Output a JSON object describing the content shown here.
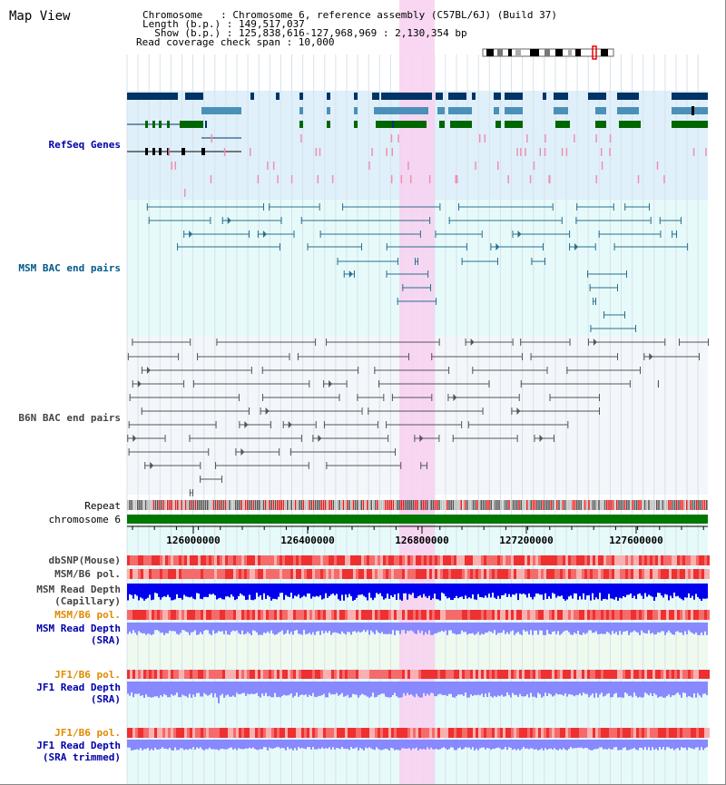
{
  "title": "Map View",
  "info": [
    "Chromosome   : Chromosome 6, reference assembly (C57BL/6J) (Build 37)",
    "Length (b.p.) : 149,517,037",
    "  Show (b.p.) : 125,838,616-127,968,969 : 2,130,354 bp",
    "Read coverage check span : 10,000"
  ],
  "tracks": {
    "refseq": {
      "label": "RefSeq Genes",
      "color": "#0000aa"
    },
    "msm_bac": {
      "label": "MSM BAC end pairs",
      "color": "#005a8c"
    },
    "b6n_bac": {
      "label": "B6N BAC end pairs",
      "color": "#444444"
    },
    "repeat": {
      "label": "Repeat",
      "color": "#000000"
    },
    "chromosome": {
      "label": "chromosome 6",
      "color": "#000000"
    },
    "dbsnp": {
      "label": "dbSNP(Mouse)",
      "color": "#444444"
    },
    "msm_pol1": {
      "label": "MSM/B6 pol.",
      "color": "#444444"
    },
    "msm_depth_cap": {
      "label1": "MSM Read Depth",
      "label2": "(Capillary)",
      "color": "#444444"
    },
    "msm_pol2": {
      "label": "MSM/B6 pol.",
      "color": "#e08a00"
    },
    "msm_depth_sra": {
      "label1": "MSM Read Depth",
      "label2": "(SRA)",
      "color": "#0000aa"
    },
    "jf1_pol1": {
      "label": "JF1/B6 pol.",
      "color": "#e08a00"
    },
    "jf1_depth_sra": {
      "label1": "JF1 Read Depth",
      "label2": "(SRA)",
      "color": "#0000aa"
    },
    "jf1_pol2": {
      "label": "JF1/B6 pol.",
      "color": "#e08a00"
    },
    "jf1_depth_trim": {
      "label1": "JF1 Read Depth",
      "label2": "(SRA trimmed)",
      "color": "#0000aa"
    }
  },
  "axis": {
    "start": 125838616,
    "end": 127968969,
    "ticks": [
      "126000000",
      "126400000",
      "126800000",
      "127200000",
      "127600000"
    ],
    "tick_values": [
      126000000,
      126400000,
      126800000,
      127200000,
      127600000
    ]
  },
  "highlight": {
    "start": 126840000,
    "end": 126970000,
    "color": "#f8d0f0"
  },
  "colors": {
    "refseq_bg": "#dff0fa",
    "msm_bg": "#e6fafa",
    "b6n_bg": "#f3f6fa",
    "lower_bg": "#e6fafa",
    "gene_dark": "#003366",
    "gene_mid": "#4a90b8",
    "gene_green": "#006600",
    "msm_line": "#2a6e8c",
    "b6n_line": "#555555",
    "chromosome_bar": "#007700",
    "depth_dark": "#0000ee",
    "depth_light": "#8888ff",
    "pol_red": "#ee2222",
    "pol_pink": "#f8a0a0",
    "pink_marker": "#f090b0"
  }
}
